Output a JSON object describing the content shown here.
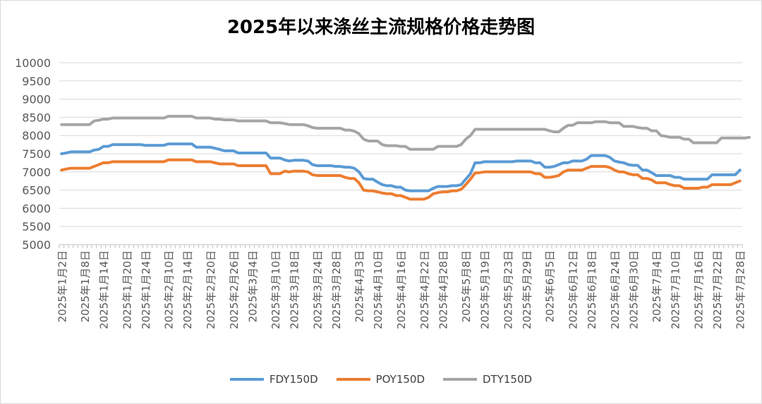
{
  "chart_data": {
    "type": "line",
    "title": "2025年以来涤丝主流规格价格走势图",
    "xlabel": "",
    "ylabel": "",
    "ylim": [
      5000,
      10000
    ],
    "yticks": [
      5000,
      5500,
      6000,
      6500,
      7000,
      7500,
      8000,
      8500,
      9000,
      9500,
      10000
    ],
    "grid": true,
    "legend_position": "bottom",
    "x_tick_labels": [
      "2025年1月2日",
      "2025年1月8日",
      "2025年1月14日",
      "2025年1月20日",
      "2025年1月24日",
      "2025年2月10日",
      "2025年2月14日",
      "2025年2月20日",
      "2025年2月26日",
      "2025年3月4日",
      "2025年3月10日",
      "2025年3月18日",
      "2025年3月24日",
      "2025年3月28日",
      "2025年4月3日",
      "2025年4月10日",
      "2025年4月16日",
      "2025年4月22日",
      "2025年4月28日",
      "2025年5月8日",
      "2025年5月19日",
      "2025年5月23日",
      "2025年5月29日",
      "2025年6月5日",
      "2025年6月12日",
      "2025年6月18日",
      "2025年6月24日",
      "2025年6月30日",
      "2025年7月4日",
      "2025年7月10日",
      "2025年7月16日",
      "2025年7月22日",
      "2025年7月28日"
    ],
    "series": [
      {
        "name": "FDY150D",
        "color": "#5b9bd5",
        "values": [
          7500,
          7520,
          7550,
          7550,
          7550,
          7550,
          7550,
          7600,
          7620,
          7700,
          7700,
          7750,
          7750,
          7750,
          7750,
          7750,
          7750,
          7750,
          7730,
          7730,
          7730,
          7730,
          7730,
          7770,
          7770,
          7770,
          7770,
          7770,
          7770,
          7680,
          7680,
          7680,
          7680,
          7650,
          7620,
          7580,
          7580,
          7580,
          7520,
          7520,
          7520,
          7520,
          7520,
          7520,
          7520,
          7380,
          7380,
          7380,
          7330,
          7300,
          7320,
          7320,
          7320,
          7300,
          7200,
          7170,
          7170,
          7170,
          7170,
          7150,
          7150,
          7130,
          7130,
          7100,
          7000,
          6820,
          6800,
          6800,
          6720,
          6650,
          6620,
          6620,
          6580,
          6580,
          6500,
          6480,
          6480,
          6480,
          6480,
          6480,
          6550,
          6600,
          6600,
          6600,
          6620,
          6620,
          6650,
          6800,
          6950,
          7250,
          7250,
          7280,
          7280,
          7280,
          7280,
          7280,
          7280,
          7280,
          7300,
          7300,
          7300,
          7300,
          7250,
          7250,
          7130,
          7130,
          7150,
          7200,
          7250,
          7250,
          7300,
          7300,
          7300,
          7350,
          7450,
          7450,
          7450,
          7450,
          7400,
          7300,
          7270,
          7250,
          7200,
          7180,
          7180,
          7050,
          7050,
          6980,
          6900,
          6900,
          6900,
          6900,
          6850,
          6850,
          6800,
          6800,
          6800,
          6800,
          6800,
          6800,
          6920,
          6920,
          6920,
          6920,
          6920,
          6920,
          7050
        ]
      },
      {
        "name": "POY150D",
        "color": "#ed7d31",
        "values": [
          7050,
          7080,
          7100,
          7100,
          7100,
          7100,
          7100,
          7150,
          7200,
          7250,
          7250,
          7280,
          7280,
          7280,
          7280,
          7280,
          7280,
          7280,
          7280,
          7280,
          7280,
          7280,
          7280,
          7330,
          7330,
          7330,
          7330,
          7330,
          7330,
          7280,
          7280,
          7280,
          7280,
          7250,
          7220,
          7220,
          7220,
          7220,
          7170,
          7170,
          7170,
          7170,
          7170,
          7170,
          7170,
          6950,
          6950,
          6950,
          7020,
          7000,
          7020,
          7020,
          7020,
          7000,
          6920,
          6900,
          6900,
          6900,
          6900,
          6900,
          6900,
          6850,
          6820,
          6820,
          6700,
          6500,
          6480,
          6480,
          6450,
          6420,
          6400,
          6400,
          6350,
          6350,
          6300,
          6250,
          6250,
          6250,
          6250,
          6300,
          6400,
          6430,
          6450,
          6450,
          6480,
          6480,
          6520,
          6650,
          6800,
          6970,
          6980,
          7000,
          7000,
          7000,
          7000,
          7000,
          7000,
          7000,
          7000,
          7000,
          7000,
          7000,
          6950,
          6950,
          6850,
          6850,
          6870,
          6900,
          7000,
          7050,
          7050,
          7050,
          7050,
          7100,
          7150,
          7150,
          7150,
          7150,
          7120,
          7050,
          7000,
          7000,
          6950,
          6920,
          6920,
          6820,
          6820,
          6780,
          6700,
          6700,
          6700,
          6650,
          6620,
          6620,
          6550,
          6550,
          6550,
          6550,
          6580,
          6580,
          6650,
          6650,
          6650,
          6650,
          6650,
          6700,
          6750
        ]
      },
      {
        "name": "DTY150D",
        "color": "#a5a5a5",
        "values": [
          8300,
          8300,
          8300,
          8300,
          8300,
          8300,
          8300,
          8400,
          8420,
          8450,
          8450,
          8480,
          8480,
          8480,
          8480,
          8480,
          8480,
          8480,
          8480,
          8480,
          8480,
          8480,
          8480,
          8530,
          8530,
          8530,
          8530,
          8530,
          8530,
          8480,
          8480,
          8480,
          8480,
          8450,
          8450,
          8430,
          8430,
          8430,
          8400,
          8400,
          8400,
          8400,
          8400,
          8400,
          8400,
          8350,
          8350,
          8350,
          8330,
          8300,
          8300,
          8300,
          8300,
          8270,
          8220,
          8200,
          8200,
          8200,
          8200,
          8200,
          8200,
          8150,
          8150,
          8120,
          8050,
          7900,
          7850,
          7850,
          7850,
          7750,
          7720,
          7720,
          7720,
          7700,
          7700,
          7620,
          7620,
          7620,
          7620,
          7620,
          7620,
          7700,
          7700,
          7700,
          7700,
          7700,
          7750,
          7900,
          8000,
          8170,
          8170,
          8170,
          8170,
          8170,
          8170,
          8170,
          8170,
          8170,
          8170,
          8170,
          8170,
          8170,
          8170,
          8170,
          8170,
          8130,
          8100,
          8100,
          8200,
          8280,
          8280,
          8350,
          8350,
          8350,
          8350,
          8380,
          8380,
          8380,
          8350,
          8350,
          8350,
          8250,
          8250,
          8250,
          8220,
          8200,
          8200,
          8130,
          8130,
          8000,
          7980,
          7950,
          7950,
          7950,
          7900,
          7900,
          7800,
          7800,
          7800,
          7800,
          7800,
          7800,
          7930,
          7930,
          7930,
          7930,
          7930,
          7930,
          7950
        ]
      }
    ]
  }
}
